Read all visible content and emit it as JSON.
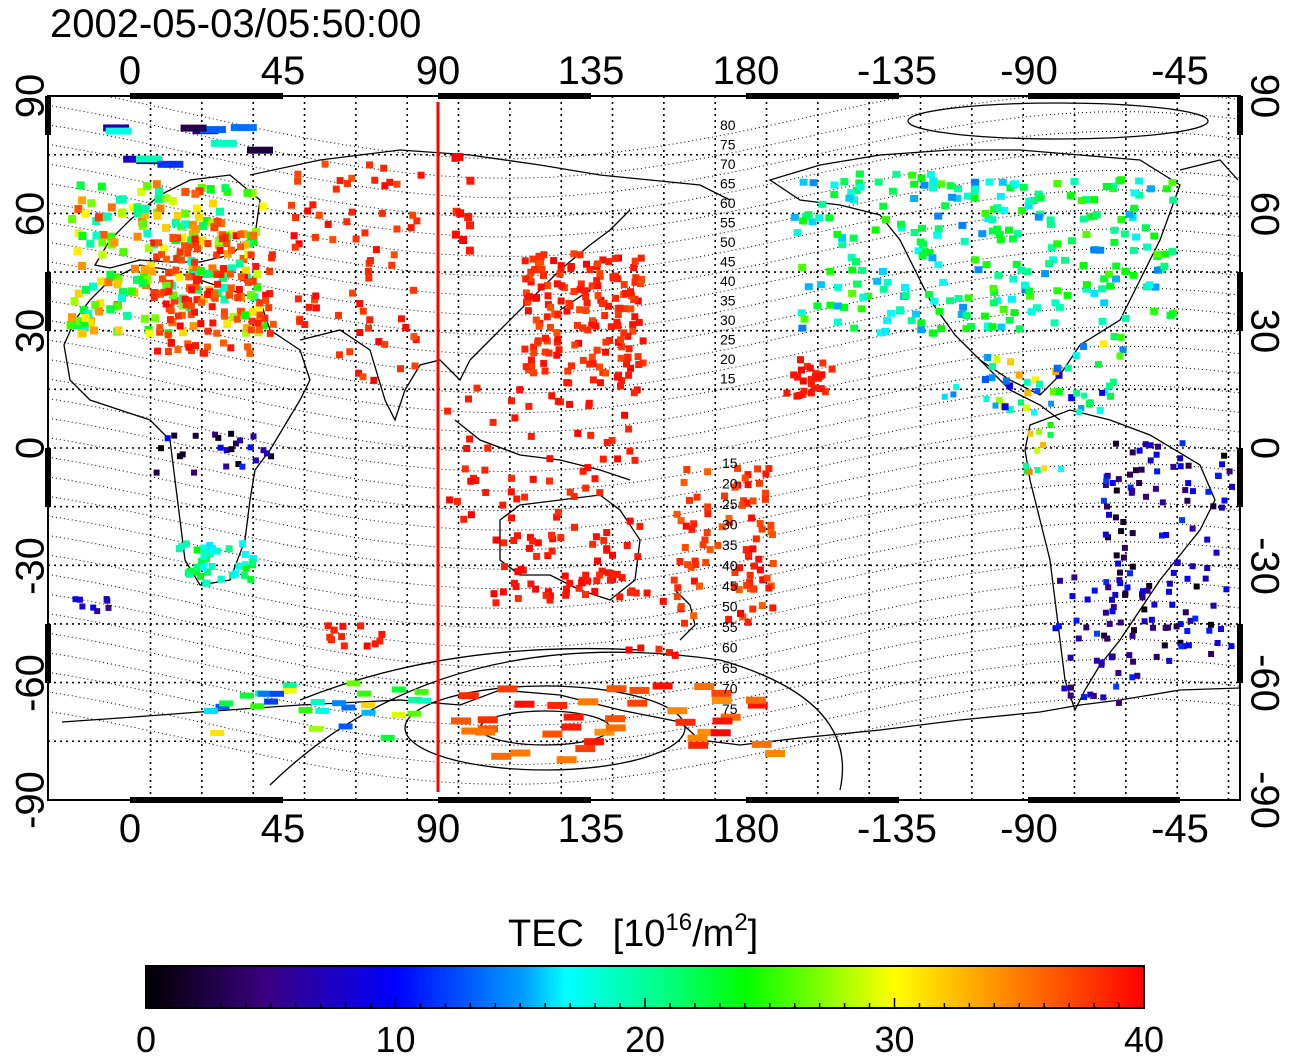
{
  "title": "2002-05-03/05:50:00",
  "axes": {
    "top_ticks": [
      "0",
      "45",
      "90",
      "135",
      "180",
      "-135",
      "-90",
      "-45"
    ],
    "bottom_ticks": [
      "0",
      "45",
      "90",
      "135",
      "180",
      "-135",
      "-90",
      "-45"
    ],
    "left_ticks": [
      "90",
      "60",
      "30",
      "0",
      "-30",
      "-60",
      "-90"
    ],
    "right_ticks": [
      "90",
      "60",
      "30",
      "0",
      "-30",
      "-60",
      "-90"
    ]
  },
  "contour_labels_north": [
    "80",
    "75",
    "70",
    "65",
    "60",
    "55",
    "50",
    "45",
    "40",
    "35",
    "30",
    "25",
    "20",
    "15"
  ],
  "contour_labels_south": [
    "15",
    "20",
    "25",
    "30",
    "35",
    "40",
    "45",
    "50",
    "55",
    "60",
    "65",
    "70",
    "75"
  ],
  "colorbar": {
    "label": "TEC",
    "unit_prefix": "[10",
    "unit_exp": "16",
    "unit_mid": "/m",
    "unit_exp2": "2",
    "unit_suffix": "]",
    "ticks": [
      "0",
      "10",
      "20",
      "30",
      "40"
    ],
    "range": [
      0,
      40
    ]
  },
  "terminator_longitude": 93,
  "colors": {
    "terminator": "#ff0000",
    "frame": "#000000"
  }
}
